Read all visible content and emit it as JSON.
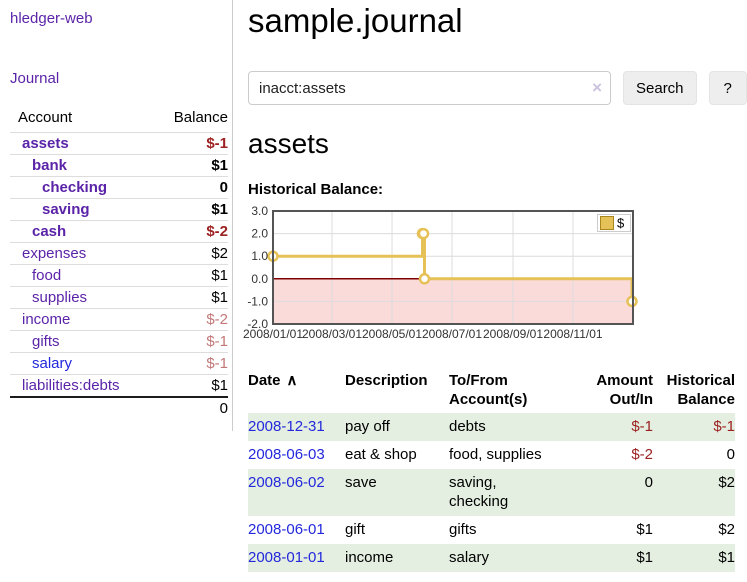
{
  "app": {
    "brand": "hledger-web",
    "nav_journal": "Journal"
  },
  "header": {
    "title": "sample.journal"
  },
  "search": {
    "value": "inacct:assets",
    "clear_icon": "×",
    "button_label": "Search",
    "help_label": "?"
  },
  "main": {
    "account_title": "assets",
    "chart_label": "Historical Balance:"
  },
  "sidebar": {
    "account_header": "Account",
    "balance_header": "Balance",
    "total": "0",
    "accounts": [
      {
        "name": "assets",
        "balance": "$-1",
        "level": 1,
        "strong": true,
        "name_color": "purple",
        "balance_color": "darkred"
      },
      {
        "name": "bank",
        "balance": "$1",
        "level": 2,
        "strong": true,
        "name_color": "purple",
        "balance_color": "black"
      },
      {
        "name": "checking",
        "balance": "0",
        "level": 3,
        "strong": true,
        "name_color": "purple",
        "balance_color": "black"
      },
      {
        "name": "saving",
        "balance": "$1",
        "level": 3,
        "strong": true,
        "name_color": "purple",
        "balance_color": "black"
      },
      {
        "name": "cash",
        "balance": "$-2",
        "level": 2,
        "strong": true,
        "name_color": "purple",
        "balance_color": "darkred"
      },
      {
        "name": "expenses",
        "balance": "$2",
        "level": 1,
        "strong": false,
        "name_color": "purple",
        "balance_color": "black"
      },
      {
        "name": "food",
        "balance": "$1",
        "level": 2,
        "strong": false,
        "name_color": "purple",
        "balance_color": "black"
      },
      {
        "name": "supplies",
        "balance": "$1",
        "level": 2,
        "strong": false,
        "name_color": "purple",
        "balance_color": "black"
      },
      {
        "name": "income",
        "balance": "$-2",
        "level": 1,
        "strong": false,
        "name_color": "purple",
        "balance_color": "rose"
      },
      {
        "name": "gifts",
        "balance": "$-1",
        "level": 2,
        "strong": false,
        "name_color": "purple",
        "balance_color": "rose"
      },
      {
        "name": "salary",
        "balance": "$-1",
        "level": 2,
        "strong": false,
        "name_color": "blue",
        "balance_color": "rose"
      },
      {
        "name": "liabilities:debts",
        "balance": "$1",
        "level": 1,
        "strong": false,
        "name_color": "purple",
        "balance_color": "black"
      }
    ]
  },
  "chart_data": {
    "type": "line",
    "title": "Historical Balance:",
    "step": true,
    "series": [
      {
        "name": "$",
        "points": [
          [
            "2008-01-01",
            1
          ],
          [
            "2008-06-01",
            2
          ],
          [
            "2008-06-02",
            2
          ],
          [
            "2008-06-03",
            0
          ],
          [
            "2008-12-31",
            -1
          ]
        ]
      }
    ],
    "y_ticks": [
      3.0,
      2.0,
      1.0,
      0.0,
      -1.0,
      -2.0
    ],
    "x_ticks": [
      "2008/01/01",
      "2008/03/01",
      "2008/05/01",
      "2008/07/01",
      "2008/09/01",
      "2008/11/01"
    ],
    "ylim": [
      -2,
      3
    ],
    "xlim": [
      "2008-01-01",
      "2009-01-01"
    ],
    "legend": {
      "label": "$",
      "position": "top-right"
    },
    "grid": true,
    "negative_region_shaded": true
  },
  "table": {
    "headers": [
      "Date",
      "Description",
      "To/From Account(s)",
      "Amount Out/In",
      "Historical Balance"
    ],
    "sort_indicator": "∧",
    "rows": [
      {
        "date": "2008-12-31",
        "description": "pay off",
        "accounts": "debts",
        "amount": "$-1",
        "balance": "$-1",
        "amount_neg": true,
        "balance_neg": true
      },
      {
        "date": "2008-06-03",
        "description": "eat & shop",
        "accounts": "food, supplies",
        "amount": "$-2",
        "balance": "0",
        "amount_neg": true,
        "balance_neg": false
      },
      {
        "date": "2008-06-02",
        "description": "save",
        "accounts": "saving, checking",
        "amount": "0",
        "balance": "$2",
        "amount_neg": false,
        "balance_neg": false
      },
      {
        "date": "2008-06-01",
        "description": "gift",
        "accounts": "gifts",
        "amount": "$1",
        "balance": "$2",
        "amount_neg": false,
        "balance_neg": false
      },
      {
        "date": "2008-01-01",
        "description": "income",
        "accounts": "salary",
        "amount": "$1",
        "balance": "$1",
        "amount_neg": false,
        "balance_neg": false
      }
    ]
  },
  "colors": {
    "purple": "#5b24a8",
    "blue": "#2328dc",
    "darkred": "#9c2121",
    "rose": "#c27878",
    "rowgreen": "#e4efe1",
    "gold": "#e6c157",
    "gold_dark": "#a8871f",
    "grid": "#dcdcdc",
    "chart_border": "#545454",
    "chart_zero": "#7f0000",
    "chart_neg_bg": "#fbdada"
  }
}
